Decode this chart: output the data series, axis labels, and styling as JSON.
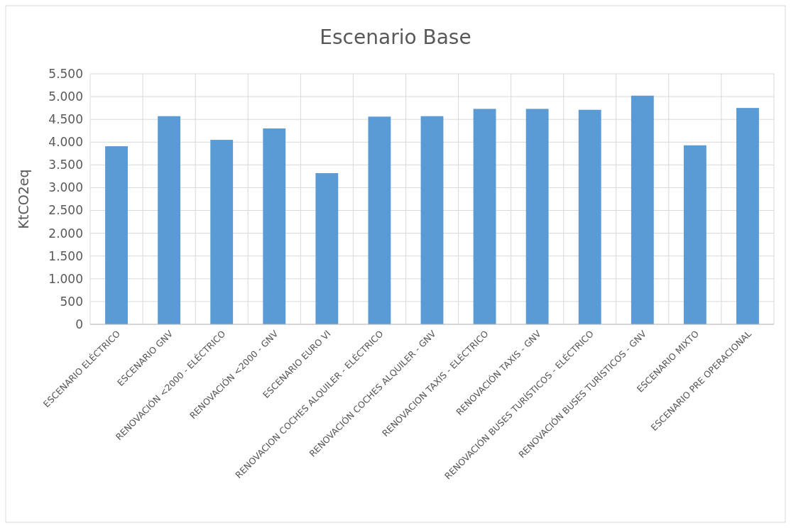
{
  "chart_data": {
    "type": "bar",
    "title": "Escenario Base",
    "ylabel": "KtCO2eq",
    "categories": [
      "ESCENARIO ELÉCTRICO",
      "ESCENARIO GNV",
      "RENOVACIÓN <2000 - ELÉCTRICO",
      "RENOVACIÓN <2000 - GNV",
      "ESCENARIO EURO VI",
      "RENOVACION COCHES ALQUILER - ELÉCTRICO",
      "RENOVACIÓN COCHES ALQUILER - GNV",
      "RENOVACION TAXIS - ELÉCTRICO",
      "RENOVACIÓN TAXIS - GNV",
      "RENOVACIÓN BUSES TURÍSTICOS - ELÉCTRICO",
      "RENOVACIÓN BUSES TURÍSTICOS - GNV",
      "ESCENARIO MIXTO",
      "ESCENARIO PRE OPERACIONAL"
    ],
    "values": [
      3910,
      4570,
      4050,
      4300,
      3320,
      4560,
      4570,
      4730,
      4730,
      4710,
      5020,
      3930,
      4750
    ],
    "color": "#5b9bd5",
    "ylim": [
      0,
      5500
    ],
    "yticks": [
      0,
      500,
      {
        "value": 1000,
        "label": "1.000"
      },
      {
        "value": 1500,
        "label": "1.500"
      },
      {
        "value": 2000,
        "label": "2.000"
      },
      {
        "value": 2500,
        "label": "2.500"
      },
      {
        "value": 3000,
        "label": "3.000"
      },
      {
        "value": 3500,
        "label": "3.500"
      },
      {
        "value": 4000,
        "label": "4.000"
      },
      {
        "value": 4500,
        "label": "4.500"
      },
      {
        "value": 5000,
        "label": "5.000"
      },
      {
        "value": 5500,
        "label": "5.500"
      }
    ],
    "grid": true
  }
}
